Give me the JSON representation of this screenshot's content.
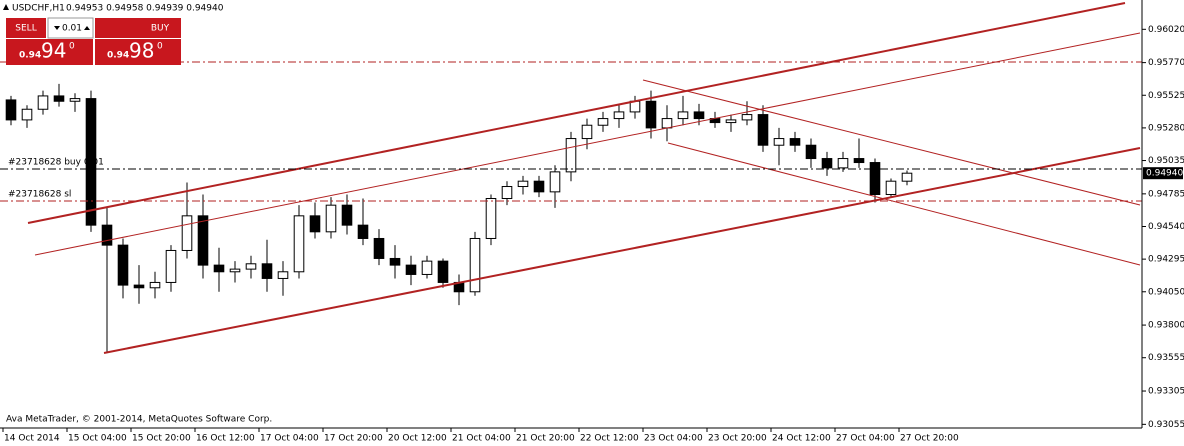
{
  "chart_data": {
    "type": "candlestick",
    "title": "USDCHF,H1",
    "quote": "0.94953 0.94958 0.94939 0.94940",
    "x": [
      2,
      6,
      10,
      14,
      18,
      22,
      26,
      30,
      34,
      38,
      42,
      46,
      50,
      54,
      58,
      62,
      66,
      70,
      74,
      78,
      82,
      86,
      90,
      94,
      98,
      102,
      106,
      110,
      114,
      118,
      122,
      126,
      130,
      134,
      138,
      142,
      146,
      150,
      154,
      158,
      162,
      166,
      170,
      174,
      178,
      182,
      186,
      190,
      194,
      198,
      202,
      206,
      210,
      214,
      218,
      222,
      226
    ],
    "open": [
      0.9549,
      0.9534,
      0.9542,
      0.9552,
      0.9548,
      0.955,
      0.9455,
      0.944,
      0.941,
      0.9408,
      0.9412,
      0.9436,
      0.9462,
      0.9425,
      0.942,
      0.9422,
      0.9426,
      0.9415,
      0.942,
      0.9462,
      0.945,
      0.947,
      0.9455,
      0.9445,
      0.943,
      0.9425,
      0.9418,
      0.9428,
      0.9412,
      0.9405,
      0.9445,
      0.9475,
      0.9484,
      0.9488,
      0.948,
      0.9495,
      0.952,
      0.953,
      0.9535,
      0.954,
      0.9548,
      0.9528,
      0.9535,
      0.954,
      0.9535,
      0.9532,
      0.9534,
      0.9538,
      0.9515,
      0.952,
      0.9515,
      0.9505,
      0.9498,
      0.9505,
      0.9502,
      0.9478,
      0.9488
    ],
    "high": [
      0.9552,
      0.9545,
      0.9556,
      0.9561,
      0.9554,
      0.9556,
      0.9468,
      0.9445,
      0.9425,
      0.942,
      0.944,
      0.9487,
      0.9478,
      0.9438,
      0.9428,
      0.9432,
      0.9444,
      0.9428,
      0.947,
      0.9472,
      0.9476,
      0.9478,
      0.9475,
      0.9452,
      0.944,
      0.9432,
      0.9432,
      0.943,
      0.9418,
      0.945,
      0.9478,
      0.9488,
      0.9492,
      0.9492,
      0.95,
      0.9525,
      0.9535,
      0.954,
      0.9545,
      0.9552,
      0.9556,
      0.9545,
      0.9552,
      0.9546,
      0.954,
      0.9538,
      0.9548,
      0.9545,
      0.9528,
      0.9525,
      0.952,
      0.951,
      0.951,
      0.952,
      0.9505,
      0.949,
      0.9496
    ],
    "low": [
      0.953,
      0.9528,
      0.9538,
      0.9544,
      0.954,
      0.945,
      0.9359,
      0.94,
      0.9396,
      0.94,
      0.9405,
      0.943,
      0.9415,
      0.9405,
      0.9412,
      0.9415,
      0.9405,
      0.9402,
      0.9415,
      0.9445,
      0.9445,
      0.9448,
      0.944,
      0.9425,
      0.9415,
      0.941,
      0.9415,
      0.9408,
      0.9395,
      0.9402,
      0.944,
      0.947,
      0.9478,
      0.9476,
      0.9468,
      0.9488,
      0.9512,
      0.9525,
      0.9528,
      0.9535,
      0.952,
      0.9518,
      0.953,
      0.953,
      0.9528,
      0.9525,
      0.953,
      0.951,
      0.95,
      0.951,
      0.9498,
      0.9492,
      0.9495,
      0.9498,
      0.9472,
      0.9476,
      0.9485
    ],
    "close": [
      0.9534,
      0.9542,
      0.9552,
      0.9548,
      0.955,
      0.9455,
      0.944,
      0.941,
      0.9408,
      0.9412,
      0.9436,
      0.9462,
      0.9425,
      0.942,
      0.9422,
      0.9426,
      0.9415,
      0.942,
      0.9462,
      0.945,
      0.947,
      0.9455,
      0.9445,
      0.943,
      0.9425,
      0.9418,
      0.9428,
      0.9412,
      0.9405,
      0.9445,
      0.9475,
      0.9484,
      0.9488,
      0.948,
      0.9495,
      0.952,
      0.953,
      0.9535,
      0.954,
      0.9548,
      0.9528,
      0.9535,
      0.954,
      0.9535,
      0.9532,
      0.9534,
      0.9538,
      0.9515,
      0.952,
      0.9515,
      0.9505,
      0.9498,
      0.9505,
      0.9502,
      0.9478,
      0.9488,
      0.9494
    ],
    "up_color": "#ffffff",
    "down_color": "#000000",
    "outline_color": "#000000",
    "xlim": [
      0,
      285
    ],
    "xticks": [
      {
        "value": 0,
        "label": "14 Oct 2014"
      },
      {
        "value": 16,
        "label": "15 Oct 04:00"
      },
      {
        "value": 32,
        "label": "15 Oct 20:00"
      },
      {
        "value": 48,
        "label": "16 Oct 12:00"
      },
      {
        "value": 64,
        "label": "17 Oct 04:00"
      },
      {
        "value": 80,
        "label": "17 Oct 20:00"
      },
      {
        "value": 96,
        "label": "20 Oct 12:00"
      },
      {
        "value": 112,
        "label": "21 Oct 04:00"
      },
      {
        "value": 128,
        "label": "21 Oct 20:00"
      },
      {
        "value": 144,
        "label": "22 Oct 12:00"
      },
      {
        "value": 160,
        "label": "23 Oct 04:00"
      },
      {
        "value": 176,
        "label": "23 Oct 20:00"
      },
      {
        "value": 192,
        "label": "24 Oct 12:00"
      },
      {
        "value": 208,
        "label": "27 Oct 04:00"
      },
      {
        "value": 224,
        "label": "27 Oct 20:00"
      }
    ],
    "ylim": [
      0.9305,
      0.9624
    ],
    "yticks": [
      {
        "value": 0.9602,
        "label": "0.96020"
      },
      {
        "value": 0.9577,
        "label": "0.95770"
      },
      {
        "value": 0.95525,
        "label": "0.95525"
      },
      {
        "value": 0.9528,
        "label": "0.95280"
      },
      {
        "value": 0.95035,
        "label": "0.95035"
      },
      {
        "value": 0.94785,
        "label": "0.94785"
      },
      {
        "value": 0.9454,
        "label": "0.94540"
      },
      {
        "value": 0.94295,
        "label": "0.94295"
      },
      {
        "value": 0.9405,
        "label": "0.94050"
      },
      {
        "value": 0.938,
        "label": "0.93800"
      },
      {
        "value": 0.93555,
        "label": "0.93555"
      },
      {
        "value": 0.93305,
        "label": "0.93305"
      },
      {
        "value": 0.93055,
        "label": "0.93055"
      }
    ],
    "current_price": {
      "value": 0.9494,
      "label": "0.94940"
    },
    "order_buy_label": "#23718628 buy 0.01",
    "order_sl_label": "#23718628 sl",
    "copyright": "Ava MetaTrader, © 2001-2014, MetaQuotes Software Corp.",
    "trade_panel": {
      "sell": "SELL",
      "buy": "BUY",
      "volume": "0.01",
      "bid": {
        "big": "0.94",
        "digits": "94",
        "point": "0"
      },
      "ask": {
        "big": "0.94",
        "digits": "98",
        "point": "0"
      }
    }
  }
}
